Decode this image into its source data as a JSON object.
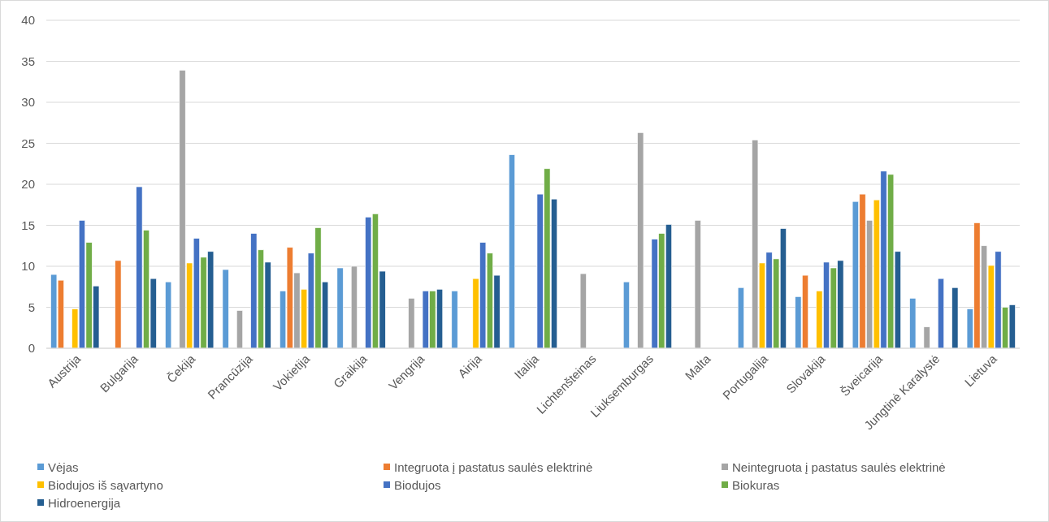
{
  "chart_data": {
    "type": "bar",
    "categories": [
      "Austrija",
      "Bulgarija",
      "Čekija",
      "Prancūzija",
      "Vokietija",
      "Graikija",
      "Vengrija",
      "Airija",
      "Italija",
      "Lichtenšteinas",
      "Liuksemburgas",
      "Malta",
      "Portugalija",
      "Slovakija",
      "Šveicarija",
      "Jungtinė Karalystė",
      "Lietuva"
    ],
    "series": [
      {
        "name": "Vėjas",
        "color": "#5b9bd5",
        "values": [
          9.0,
          null,
          8.1,
          9.6,
          7.0,
          9.8,
          null,
          7.0,
          23.6,
          null,
          8.1,
          null,
          7.4,
          6.3,
          17.9,
          6.1,
          4.8
        ]
      },
      {
        "name": "Integruota į pastatus saulės elektrinė",
        "color": "#ed7d31",
        "values": [
          8.3,
          10.7,
          null,
          null,
          12.3,
          null,
          null,
          null,
          null,
          null,
          null,
          null,
          null,
          8.9,
          18.8,
          null,
          15.3
        ]
      },
      {
        "name": "Neintegruota į pastatus saulės elektrinė",
        "color": "#a5a5a5",
        "values": [
          null,
          null,
          33.9,
          4.6,
          9.2,
          10.0,
          6.1,
          null,
          null,
          9.1,
          26.3,
          15.6,
          25.4,
          null,
          15.6,
          2.6,
          12.5
        ]
      },
      {
        "name": "Biodujos iš sąvartyno",
        "color": "#ffc000",
        "values": [
          4.8,
          null,
          10.4,
          null,
          7.2,
          null,
          null,
          8.5,
          null,
          null,
          null,
          null,
          10.4,
          7.0,
          18.1,
          null,
          10.1
        ]
      },
      {
        "name": "Biodujos",
        "color": "#4472c4",
        "values": [
          15.6,
          19.7,
          13.4,
          14.0,
          11.6,
          16.0,
          7.0,
          12.9,
          18.8,
          null,
          13.3,
          null,
          11.7,
          10.5,
          21.6,
          8.5,
          11.8
        ]
      },
      {
        "name": "Biokuras",
        "color": "#70ad47",
        "values": [
          12.9,
          14.4,
          11.1,
          12.0,
          14.7,
          16.4,
          7.0,
          11.6,
          21.9,
          null,
          14.0,
          null,
          10.9,
          9.8,
          21.2,
          null,
          5.0
        ]
      },
      {
        "name": "Hidroenergija",
        "color": "#255e91",
        "values": [
          7.6,
          8.5,
          11.8,
          10.5,
          8.1,
          9.4,
          7.2,
          8.9,
          18.2,
          null,
          15.1,
          null,
          14.6,
          10.7,
          11.8,
          7.4,
          5.3
        ]
      }
    ],
    "ylim": [
      0,
      40
    ],
    "yticks": [
      0,
      5,
      10,
      15,
      20,
      25,
      30,
      35,
      40
    ],
    "grid": "y",
    "legend": "bottom"
  }
}
